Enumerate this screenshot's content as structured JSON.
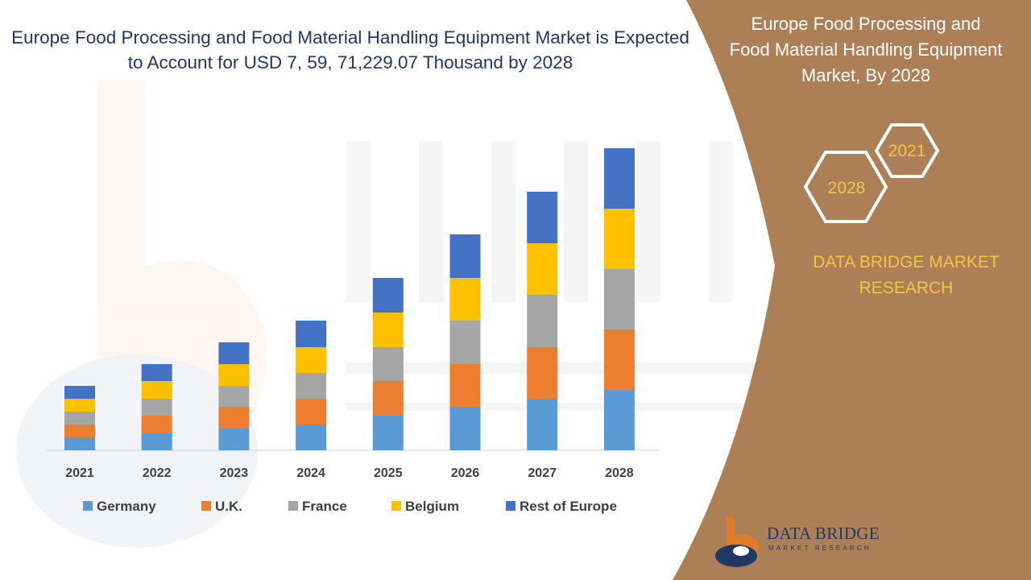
{
  "title": "Europe Food Processing and Food Material Handling Equipment Market is Expected to Account for USD 7, 59, 71,229.07 Thousand by 2028",
  "side_panel": {
    "title": "Europe Food Processing and Food Material Handling Equipment Market, By 2028",
    "hex_recent": "2021",
    "hex_target": "2028",
    "brand": "DATA BRIDGE MARKET RESEARCH",
    "bg_color": "#ad7f57"
  },
  "logo": {
    "name": "DATA BRIDGE",
    "sub": "MARKET RESEARCH"
  },
  "chart_data": {
    "type": "bar",
    "stacked": true,
    "categories": [
      "2021",
      "2022",
      "2023",
      "2024",
      "2025",
      "2026",
      "2027",
      "2028"
    ],
    "series": [
      {
        "name": "Germany",
        "color": "#5b9bd5",
        "values": [
          16,
          21,
          27,
          32,
          43,
          54,
          64,
          75
        ]
      },
      {
        "name": "U.K.",
        "color": "#ed7d31",
        "values": [
          16,
          22,
          27,
          32,
          43,
          53,
          64,
          75
        ]
      },
      {
        "name": "France",
        "color": "#a5a5a5",
        "values": [
          16,
          21,
          26,
          32,
          42,
          54,
          65,
          75
        ]
      },
      {
        "name": "Belgium",
        "color": "#ffc000",
        "values": [
          16,
          22,
          27,
          32,
          43,
          53,
          64,
          75
        ]
      },
      {
        "name": "Rest of Europe",
        "color": "#4472c4",
        "values": [
          16,
          21,
          27,
          33,
          43,
          54,
          64,
          75
        ]
      }
    ],
    "ylim": [
      0,
      400
    ],
    "legend": "bottom",
    "grid": false
  }
}
